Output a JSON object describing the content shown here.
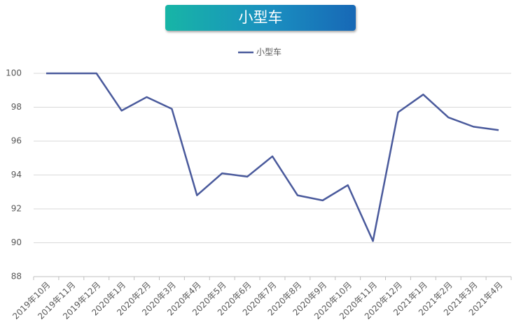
{
  "chart_data": {
    "type": "line",
    "title": "小型车",
    "categories": [
      "2019年10月",
      "2019年11月",
      "2019年12月",
      "2020年1月",
      "2020年2月",
      "2020年3月",
      "2020年4月",
      "2020年5月",
      "2020年6月",
      "2020年7月",
      "2020年8月",
      "2020年9月",
      "2020年10月",
      "2020年11月",
      "2020年12月",
      "2021年1月",
      "2021年2月",
      "2021年3月",
      "2021年4月"
    ],
    "series": [
      {
        "name": "小型车",
        "color": "#4a5a9c",
        "values": [
          100,
          100,
          100,
          97.8,
          98.6,
          97.9,
          92.8,
          94.1,
          93.9,
          95.1,
          92.8,
          92.5,
          93.4,
          90.1,
          97.7,
          98.75,
          97.4,
          96.85,
          96.65
        ]
      }
    ],
    "ylim": [
      88,
      100
    ],
    "yticks": [
      88,
      90,
      92,
      94,
      96,
      98,
      100
    ],
    "grid": true,
    "legend": "top"
  }
}
